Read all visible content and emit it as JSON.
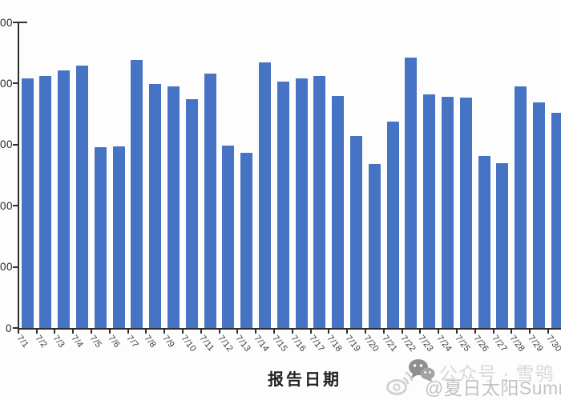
{
  "chart_data": {
    "type": "bar",
    "title": "",
    "xlabel": "报告日期",
    "ylabel": "",
    "categories": [
      "7/1",
      "7/2",
      "7/3",
      "7/4",
      "7/5",
      "7/6",
      "7/7",
      "7/8",
      "7/9",
      "7/10",
      "7/11",
      "7/12",
      "7/13",
      "7/14",
      "7/15",
      "7/16",
      "7/17",
      "7/18",
      "7/19",
      "7/20",
      "7/21",
      "7/22",
      "7/23",
      "7/24",
      "7/25",
      "7/26",
      "7/27",
      "7/28",
      "7/29",
      "7/30"
    ],
    "values": [
      4090,
      4120,
      4210,
      4290,
      2960,
      2970,
      4390,
      3990,
      3960,
      3750,
      4160,
      2990,
      2870,
      4340,
      4030,
      4080,
      4120,
      3790,
      3140,
      2690,
      3380,
      4420,
      3820,
      3780,
      3770,
      2820,
      2700,
      3960,
      3690,
      3520
    ],
    "ylim": [
      0,
      5000
    ],
    "y_tick_labels_visible": [
      "0",
      "00",
      "00",
      "00",
      "00",
      "00"
    ],
    "grid": "off",
    "legend": "none",
    "bar_color": "#4673C4",
    "axis_color": "#2e2e2e"
  },
  "watermark": {
    "line1": "公众号 · 雪鸮",
    "line2": "@夏日太阳Summ"
  }
}
